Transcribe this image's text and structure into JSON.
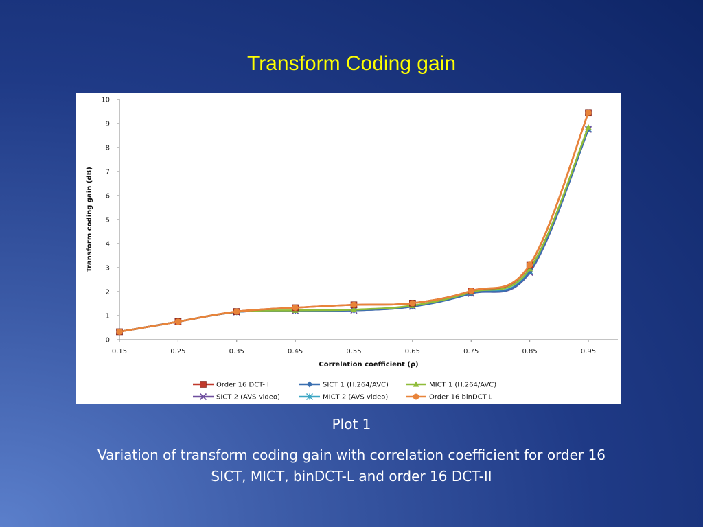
{
  "slide": {
    "title": "Transform Coding gain",
    "plot_label": "Plot 1",
    "caption": "Variation of transform coding gain with correlation coefficient for order 16 SICT, MICT, binDCT-L and order 16 DCT-II"
  },
  "chart_data": {
    "type": "line",
    "title": "",
    "xlabel": "Correlation coefficient  (ρ)",
    "ylabel": "Transform coding gain (dB)",
    "x": [
      0.15,
      0.25,
      0.35,
      0.45,
      0.55,
      0.65,
      0.75,
      0.85,
      0.95
    ],
    "x_tick_labels": [
      "0.15",
      "0.25",
      "0.35",
      "0.45",
      "0.55",
      "0.65",
      "0.75",
      "0.85",
      "0.95"
    ],
    "ylim": [
      0,
      10
    ],
    "y_ticks": [
      0,
      1,
      2,
      3,
      4,
      5,
      6,
      7,
      8,
      9,
      10
    ],
    "legend_position": "bottom",
    "series": [
      {
        "name": "Order 16 DCT-II",
        "color": "#c0392b",
        "marker": "square",
        "values": [
          0.33,
          0.75,
          1.17,
          1.33,
          1.45,
          1.52,
          2.03,
          3.1,
          9.45
        ]
      },
      {
        "name": "SICT 1 (H.264/AVC)",
        "color": "#3a6fb0",
        "marker": "diamond",
        "values": [
          0.33,
          0.75,
          1.15,
          1.2,
          1.22,
          1.38,
          1.92,
          2.82,
          8.75
        ]
      },
      {
        "name": "MICT 1 (H.264/AVC)",
        "color": "#8fbc3a",
        "marker": "triangle",
        "values": [
          0.33,
          0.75,
          1.16,
          1.22,
          1.25,
          1.42,
          1.98,
          2.95,
          8.85
        ]
      },
      {
        "name": "SICT 2 (AVS-video)",
        "color": "#6e4e9e",
        "marker": "x",
        "values": [
          0.33,
          0.75,
          1.15,
          1.2,
          1.22,
          1.38,
          1.92,
          2.8,
          8.75
        ]
      },
      {
        "name": "MICT 2 (AVS-video)",
        "color": "#3aa6c4",
        "marker": "asterisk",
        "values": [
          0.33,
          0.75,
          1.15,
          1.21,
          1.23,
          1.4,
          1.94,
          2.85,
          8.78
        ]
      },
      {
        "name": "Order 16 binDCT-L",
        "color": "#e8843a",
        "marker": "circle",
        "values": [
          0.33,
          0.75,
          1.17,
          1.33,
          1.45,
          1.52,
          2.03,
          3.12,
          9.45
        ]
      }
    ]
  }
}
